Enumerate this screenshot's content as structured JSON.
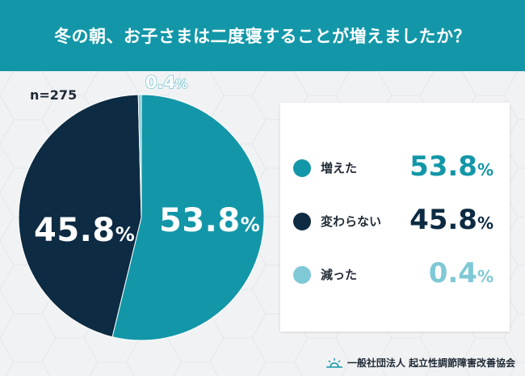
{
  "header": {
    "title": "冬の朝、お子さまは二度寝することが増えましたか？"
  },
  "sample": {
    "label": "n=275"
  },
  "colors": {
    "header_bg": "#1397a8",
    "increased": "#1397a8",
    "unchanged": "#0d2b42",
    "decreased": "#7fc8d5",
    "background": "#f1f2f4"
  },
  "chart_data": {
    "type": "pie",
    "title": "冬の朝、お子さまは二度寝することが増えましたか？",
    "n": 275,
    "start": "12 o'clock, clockwise",
    "slices": [
      {
        "label": "増えた",
        "value": 53.8,
        "color": "#1397a8",
        "display": "53.8",
        "unit": "%"
      },
      {
        "label": "変わらない",
        "value": 45.8,
        "color": "#0d2b42",
        "display": "45.8",
        "unit": "%"
      },
      {
        "label": "減った",
        "value": 0.4,
        "color": "#7fc8d5",
        "display": "0.4",
        "unit": "%"
      }
    ],
    "legend_placement": "right"
  },
  "legend": {
    "items": [
      {
        "label": "増えた",
        "value": "53.8",
        "unit": "%"
      },
      {
        "label": "変わらない",
        "value": "45.8",
        "unit": "%"
      },
      {
        "label": "減った",
        "value": "0.4",
        "unit": "%"
      }
    ]
  },
  "footer": {
    "organization": "一般社団法人 起立性調節障害改善協会",
    "logo_icon": "sunrise-icon"
  }
}
